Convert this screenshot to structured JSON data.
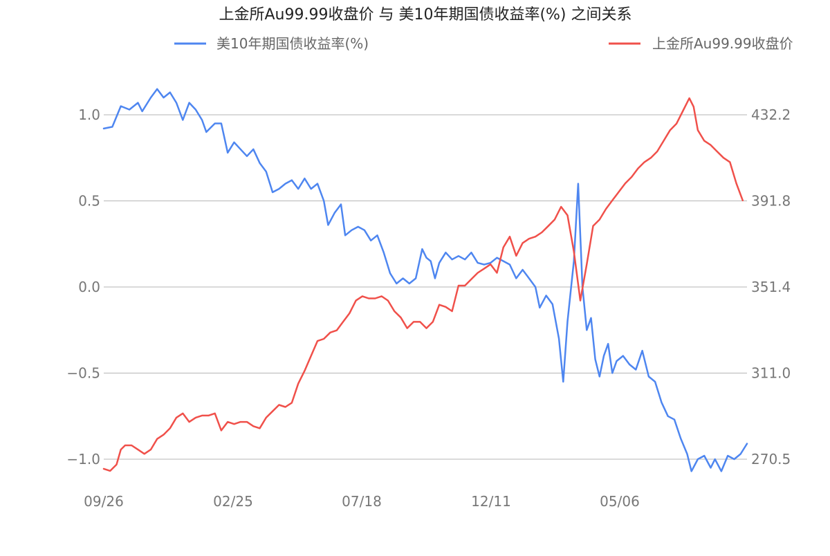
{
  "chart_data": {
    "type": "line",
    "title": "上金所Au99.99收盘价 与 美10年期国债收益率(%) 之间关系",
    "x_tick_labels": [
      "09/26",
      "02/25",
      "07/18",
      "12/11",
      "05/06"
    ],
    "y_left": {
      "ticks": [
        1.0,
        0.5,
        0.0,
        -0.5,
        -1.0
      ],
      "tick_labels": [
        "1.0",
        "0.5",
        "0.0",
        "−0.5",
        "−1.0"
      ],
      "range": [
        -1.2,
        1.2
      ]
    },
    "y_right": {
      "ticks": [
        432.2,
        391.8,
        351.4,
        311.0,
        270.5
      ],
      "tick_labels": [
        "432.2",
        "391.8",
        "351.4",
        "311.0",
        "270.5"
      ],
      "range": [
        265,
        440
      ]
    },
    "grid": true,
    "legend_position": "top",
    "series": [
      {
        "name": "美10年期国债收益率(%)",
        "axis": "left",
        "color": "#4e86f0",
        "points": [
          [
            0,
            0.92
          ],
          [
            4,
            0.93
          ],
          [
            8,
            1.05
          ],
          [
            12,
            1.03
          ],
          [
            16,
            1.07
          ],
          [
            18,
            1.02
          ],
          [
            22,
            1.1
          ],
          [
            25,
            1.15
          ],
          [
            28,
            1.1
          ],
          [
            31,
            1.13
          ],
          [
            34,
            1.07
          ],
          [
            37,
            0.97
          ],
          [
            40,
            1.07
          ],
          [
            43,
            1.03
          ],
          [
            46,
            0.97
          ],
          [
            48,
            0.9
          ],
          [
            52,
            0.95
          ],
          [
            55,
            0.95
          ],
          [
            58,
            0.78
          ],
          [
            61,
            0.84
          ],
          [
            64,
            0.8
          ],
          [
            67,
            0.76
          ],
          [
            70,
            0.8
          ],
          [
            73,
            0.72
          ],
          [
            76,
            0.67
          ],
          [
            79,
            0.55
          ],
          [
            82,
            0.57
          ],
          [
            85,
            0.6
          ],
          [
            88,
            0.62
          ],
          [
            91,
            0.57
          ],
          [
            94,
            0.63
          ],
          [
            97,
            0.57
          ],
          [
            100,
            0.6
          ],
          [
            103,
            0.5
          ],
          [
            105,
            0.36
          ],
          [
            108,
            0.43
          ],
          [
            111,
            0.48
          ],
          [
            113,
            0.3
          ],
          [
            116,
            0.33
          ],
          [
            119,
            0.35
          ],
          [
            122,
            0.33
          ],
          [
            125,
            0.27
          ],
          [
            128,
            0.3
          ],
          [
            131,
            0.2
          ],
          [
            134,
            0.08
          ],
          [
            137,
            0.02
          ],
          [
            140,
            0.05
          ],
          [
            143,
            0.02
          ],
          [
            146,
            0.05
          ],
          [
            149,
            0.22
          ],
          [
            151,
            0.17
          ],
          [
            153,
            0.15
          ],
          [
            155,
            0.05
          ],
          [
            157,
            0.14
          ],
          [
            160,
            0.2
          ],
          [
            163,
            0.16
          ],
          [
            166,
            0.18
          ],
          [
            169,
            0.16
          ],
          [
            172,
            0.2
          ],
          [
            175,
            0.14
          ],
          [
            178,
            0.13
          ],
          [
            181,
            0.14
          ],
          [
            184,
            0.17
          ],
          [
            187,
            0.15
          ],
          [
            190,
            0.13
          ],
          [
            193,
            0.05
          ],
          [
            196,
            0.1
          ],
          [
            199,
            0.05
          ],
          [
            202,
            0.0
          ],
          [
            204,
            -0.12
          ],
          [
            207,
            -0.05
          ],
          [
            210,
            -0.1
          ],
          [
            213,
            -0.3
          ],
          [
            215,
            -0.55
          ],
          [
            217,
            -0.2
          ],
          [
            220,
            0.15
          ],
          [
            222,
            0.6
          ],
          [
            224,
            0.0
          ],
          [
            226,
            -0.25
          ],
          [
            228,
            -0.18
          ],
          [
            230,
            -0.42
          ],
          [
            232,
            -0.52
          ],
          [
            234,
            -0.4
          ],
          [
            236,
            -0.33
          ],
          [
            238,
            -0.5
          ],
          [
            240,
            -0.43
          ],
          [
            243,
            -0.4
          ],
          [
            246,
            -0.45
          ],
          [
            249,
            -0.48
          ],
          [
            252,
            -0.37
          ],
          [
            255,
            -0.52
          ],
          [
            258,
            -0.55
          ],
          [
            261,
            -0.67
          ],
          [
            264,
            -0.75
          ],
          [
            267,
            -0.77
          ],
          [
            270,
            -0.88
          ],
          [
            273,
            -0.97
          ],
          [
            275,
            -1.07
          ],
          [
            278,
            -1.0
          ],
          [
            281,
            -0.98
          ],
          [
            284,
            -1.05
          ],
          [
            286,
            -1.0
          ],
          [
            289,
            -1.07
          ],
          [
            292,
            -0.98
          ],
          [
            295,
            -1.0
          ],
          [
            298,
            -0.97
          ],
          [
            301,
            -0.91
          ]
        ]
      },
      {
        "name": "上金所Au99.99收盘价",
        "axis": "right",
        "color": "#f0504a",
        "points": [
          [
            0,
            266
          ],
          [
            3,
            265
          ],
          [
            6,
            268
          ],
          [
            8,
            275
          ],
          [
            10,
            277
          ],
          [
            13,
            277
          ],
          [
            16,
            275
          ],
          [
            19,
            273
          ],
          [
            22,
            275
          ],
          [
            25,
            280
          ],
          [
            28,
            282
          ],
          [
            31,
            285
          ],
          [
            34,
            290
          ],
          [
            37,
            292
          ],
          [
            40,
            288
          ],
          [
            43,
            290
          ],
          [
            46,
            291
          ],
          [
            49,
            291
          ],
          [
            52,
            292
          ],
          [
            55,
            284
          ],
          [
            58,
            288
          ],
          [
            61,
            287
          ],
          [
            64,
            288
          ],
          [
            67,
            288
          ],
          [
            70,
            286
          ],
          [
            73,
            285
          ],
          [
            76,
            290
          ],
          [
            79,
            293
          ],
          [
            82,
            296
          ],
          [
            85,
            295
          ],
          [
            88,
            297
          ],
          [
            91,
            306
          ],
          [
            94,
            312
          ],
          [
            97,
            319
          ],
          [
            100,
            326
          ],
          [
            103,
            327
          ],
          [
            106,
            330
          ],
          [
            109,
            331
          ],
          [
            112,
            335
          ],
          [
            115,
            339
          ],
          [
            118,
            345
          ],
          [
            121,
            347
          ],
          [
            124,
            346
          ],
          [
            127,
            346
          ],
          [
            130,
            347
          ],
          [
            133,
            345
          ],
          [
            136,
            340
          ],
          [
            139,
            337
          ],
          [
            142,
            332
          ],
          [
            145,
            335
          ],
          [
            148,
            335
          ],
          [
            151,
            332
          ],
          [
            154,
            335
          ],
          [
            157,
            343
          ],
          [
            160,
            342
          ],
          [
            163,
            340
          ],
          [
            166,
            352
          ],
          [
            169,
            352
          ],
          [
            172,
            355
          ],
          [
            175,
            358
          ],
          [
            178,
            360
          ],
          [
            181,
            362
          ],
          [
            184,
            358
          ],
          [
            187,
            370
          ],
          [
            190,
            375
          ],
          [
            193,
            366
          ],
          [
            196,
            372
          ],
          [
            199,
            374
          ],
          [
            202,
            375
          ],
          [
            205,
            377
          ],
          [
            208,
            380
          ],
          [
            211,
            383
          ],
          [
            214,
            389
          ],
          [
            217,
            385
          ],
          [
            220,
            368
          ],
          [
            223,
            345
          ],
          [
            226,
            362
          ],
          [
            229,
            380
          ],
          [
            232,
            383
          ],
          [
            235,
            388
          ],
          [
            238,
            392
          ],
          [
            241,
            396
          ],
          [
            244,
            400
          ],
          [
            247,
            403
          ],
          [
            250,
            407
          ],
          [
            253,
            410
          ],
          [
            256,
            412
          ],
          [
            259,
            415
          ],
          [
            262,
            420
          ],
          [
            265,
            425
          ],
          [
            268,
            428
          ],
          [
            271,
            434
          ],
          [
            274,
            440
          ],
          [
            276,
            436
          ],
          [
            278,
            425
          ],
          [
            281,
            420
          ],
          [
            284,
            418
          ],
          [
            287,
            415
          ],
          [
            290,
            412
          ],
          [
            293,
            410
          ],
          [
            296,
            400
          ],
          [
            299,
            392
          ]
        ]
      }
    ]
  }
}
